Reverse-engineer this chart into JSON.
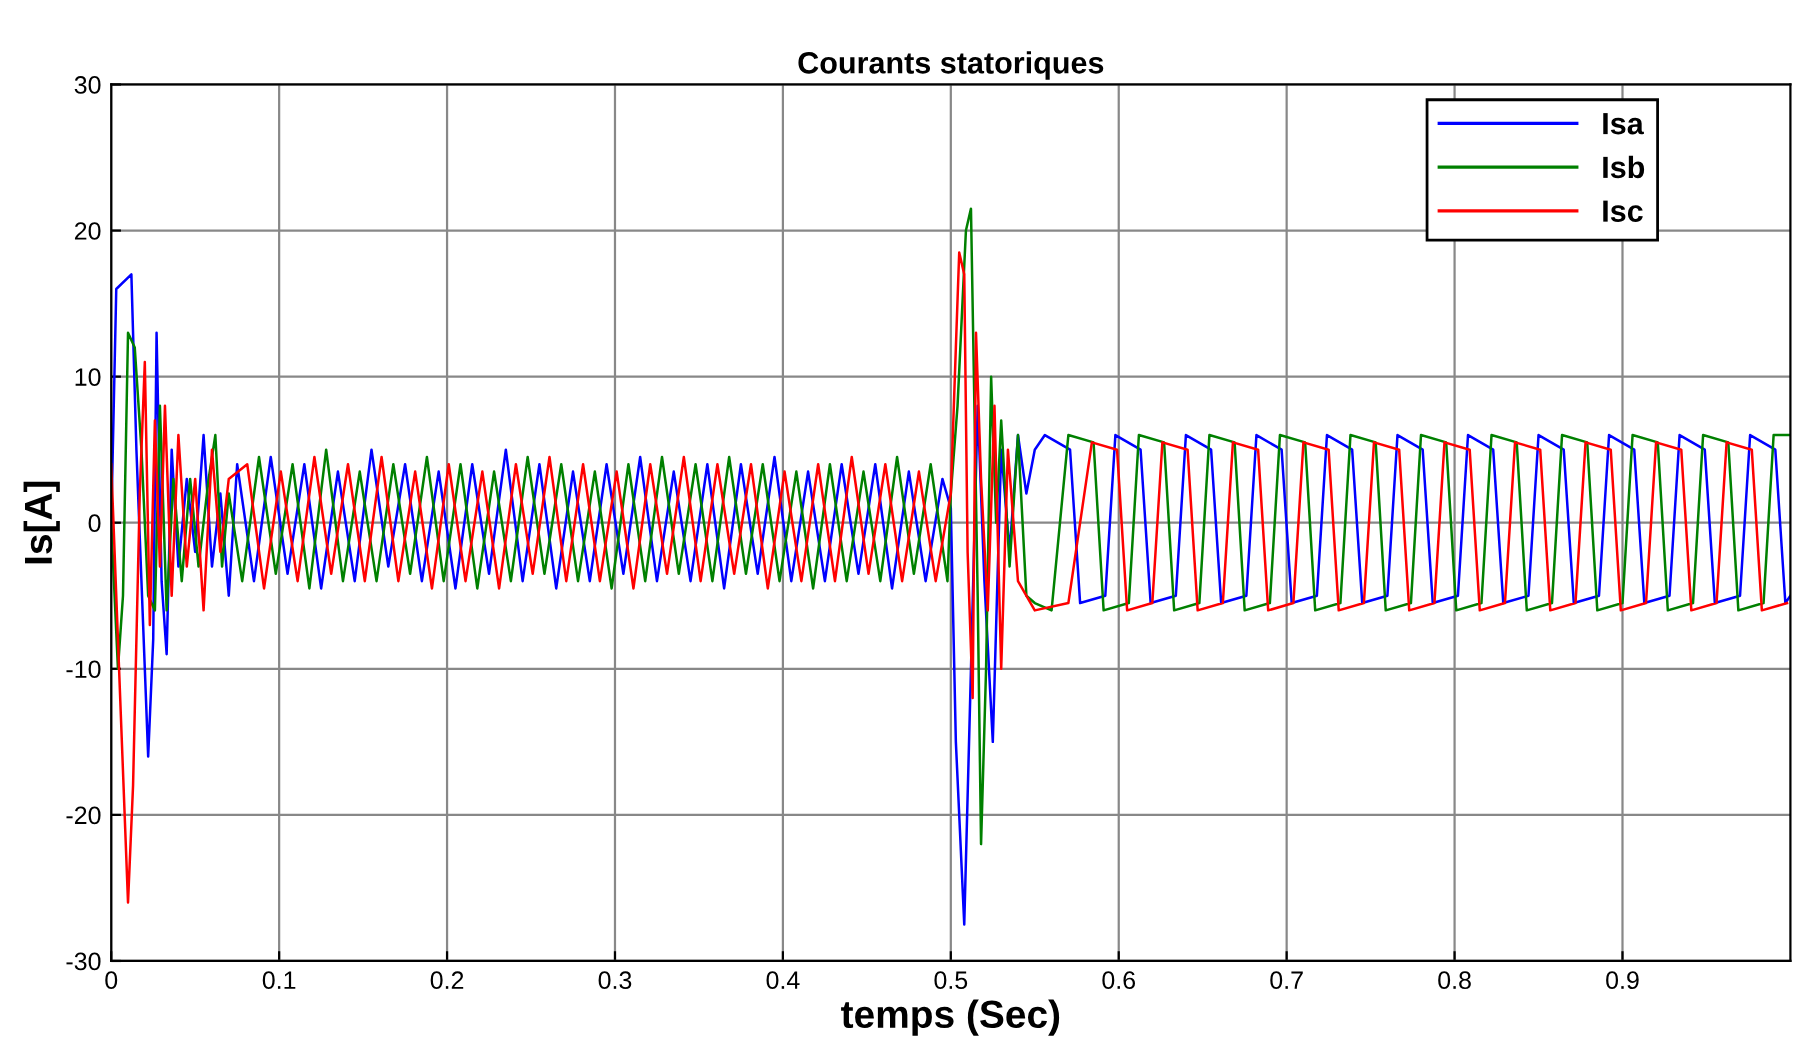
{
  "chart_data": {
    "type": "line",
    "title": "Courants statoriques",
    "xlabel": "temps (Sec)",
    "ylabel": "Is[A]",
    "xlim": [
      0,
      1
    ],
    "ylim": [
      -30,
      30
    ],
    "xticks": [
      0,
      0.1,
      0.2,
      0.3,
      0.4,
      0.5,
      0.6,
      0.7,
      0.8,
      0.9
    ],
    "yticks": [
      -30,
      -20,
      -10,
      0,
      10,
      20,
      30
    ],
    "grid": true,
    "legend": "top right",
    "line_style": "solid",
    "marker": "none",
    "series": [
      {
        "name": "Isa",
        "color": "#0000ff",
        "x": [
          0,
          0.003,
          0.012,
          0.015,
          0.02,
          0.022,
          0.025,
          0.027,
          0.03,
          0.033,
          0.036,
          0.04,
          0.045,
          0.05,
          0.055,
          0.06,
          0.065,
          0.07,
          0.075,
          0.085,
          0.095,
          0.105,
          0.115,
          0.125,
          0.135,
          0.145,
          0.155,
          0.165,
          0.175,
          0.185,
          0.195,
          0.205,
          0.215,
          0.225,
          0.235,
          0.245,
          0.255,
          0.265,
          0.275,
          0.285,
          0.295,
          0.305,
          0.315,
          0.325,
          0.335,
          0.345,
          0.355,
          0.365,
          0.375,
          0.385,
          0.395,
          0.405,
          0.415,
          0.425,
          0.435,
          0.445,
          0.455,
          0.465,
          0.475,
          0.485,
          0.495,
          0.5,
          0.503,
          0.508,
          0.512,
          0.516,
          0.52,
          0.525,
          0.53,
          0.535,
          0.54,
          0.545,
          0.55,
          0.556,
          0.571,
          0.577,
          0.592,
          0.598,
          0.613,
          0.619,
          0.634,
          0.64,
          0.655,
          0.661,
          0.676,
          0.682,
          0.697,
          0.703,
          0.718,
          0.724,
          0.739,
          0.745,
          0.76,
          0.766,
          0.781,
          0.787,
          0.802,
          0.808,
          0.823,
          0.829,
          0.844,
          0.85,
          0.865,
          0.871,
          0.886,
          0.892,
          0.907,
          0.913,
          0.928,
          0.934,
          0.949,
          0.955,
          0.97,
          0.976,
          0.991,
          0.997,
          1.0
        ],
        "values": [
          0,
          16,
          17,
          5,
          -10,
          -16,
          -8,
          13,
          -4,
          -9,
          5,
          -3,
          3,
          -2,
          6,
          -3,
          2,
          -5,
          4,
          -4,
          4.5,
          -3.5,
          4,
          -4.5,
          3.5,
          -4,
          5,
          -3,
          4,
          -4,
          3.5,
          -4.5,
          4,
          -3.5,
          5,
          -4,
          4,
          -4.5,
          3.5,
          -4,
          4,
          -3.5,
          4.5,
          -4,
          3.5,
          -4,
          4,
          -4.5,
          4,
          -3.5,
          4.5,
          -4,
          3.5,
          -4,
          4,
          -3.5,
          4,
          -4.5,
          3.5,
          -4,
          3,
          1,
          -15,
          -27.5,
          -10,
          8,
          -4,
          -15,
          5,
          -2,
          6,
          2,
          5,
          6,
          5,
          -5.5,
          -5,
          6,
          5,
          -5.5,
          -5,
          6,
          5,
          -5.5,
          -5,
          6,
          5,
          -5.5,
          -5,
          6,
          5,
          -5.5,
          -5,
          6,
          5,
          -5.5,
          -5,
          6,
          5,
          -5.5,
          -5,
          6,
          5,
          -5.5,
          -5,
          6,
          5,
          -5.5,
          -5,
          6,
          5,
          -5.5,
          -5,
          6,
          5,
          -5.5,
          -5
        ]
      },
      {
        "name": "Isb",
        "color": "#008000",
        "x": [
          0,
          0.004,
          0.007,
          0.01,
          0.014,
          0.018,
          0.022,
          0.026,
          0.029,
          0.033,
          0.037,
          0.042,
          0.047,
          0.052,
          0.058,
          0.062,
          0.066,
          0.07,
          0.078,
          0.088,
          0.098,
          0.108,
          0.118,
          0.128,
          0.138,
          0.148,
          0.158,
          0.168,
          0.178,
          0.188,
          0.198,
          0.208,
          0.218,
          0.228,
          0.238,
          0.248,
          0.258,
          0.268,
          0.278,
          0.288,
          0.298,
          0.308,
          0.318,
          0.328,
          0.338,
          0.348,
          0.358,
          0.368,
          0.378,
          0.388,
          0.398,
          0.408,
          0.418,
          0.428,
          0.438,
          0.448,
          0.458,
          0.468,
          0.478,
          0.488,
          0.498,
          0.5,
          0.504,
          0.509,
          0.512,
          0.516,
          0.518,
          0.521,
          0.524,
          0.527,
          0.53,
          0.535,
          0.54,
          0.545,
          0.55,
          0.56,
          0.57,
          0.585,
          0.591,
          0.606,
          0.612,
          0.627,
          0.633,
          0.648,
          0.654,
          0.669,
          0.675,
          0.69,
          0.696,
          0.711,
          0.717,
          0.732,
          0.738,
          0.753,
          0.759,
          0.774,
          0.78,
          0.795,
          0.801,
          0.816,
          0.822,
          0.837,
          0.843,
          0.858,
          0.864,
          0.879,
          0.885,
          0.9,
          0.906,
          0.921,
          0.927,
          0.942,
          0.948,
          0.963,
          0.969,
          0.984,
          0.99,
          1.0
        ],
        "values": [
          0,
          -10,
          -5,
          13,
          12,
          5,
          -5,
          -6,
          8,
          -6,
          3,
          -4,
          3,
          -3,
          3,
          6,
          -3,
          2,
          -4,
          4.5,
          -3.5,
          4,
          -4.5,
          5,
          -4,
          3.5,
          -4,
          4,
          -3.5,
          4.5,
          -4,
          4,
          -4.5,
          3.5,
          -4,
          4.5,
          -3.5,
          4,
          -4,
          3.5,
          -4.5,
          4,
          -4,
          4.5,
          -3.5,
          4,
          -4,
          4.5,
          -3.5,
          4,
          -4,
          3.5,
          -4.5,
          4,
          -4,
          3.5,
          -4,
          4.5,
          -3.5,
          4,
          -4,
          2,
          8,
          20,
          21.5,
          -5,
          -22,
          -10,
          10,
          0,
          7,
          -3,
          6,
          -5,
          -5.5,
          -6,
          6,
          5.5,
          -6,
          -5.5,
          6,
          5.5,
          -6,
          -5.5,
          6,
          5.5,
          -6,
          -5.5,
          6,
          5.5,
          -6,
          -5.5,
          6,
          5.5,
          -6,
          -5.5,
          6,
          5.5,
          -6,
          -5.5,
          6,
          5.5,
          -6,
          -5.5,
          6,
          5.5,
          -6,
          -5.5,
          6,
          5.5,
          -6,
          -5.5,
          6,
          5.5,
          -6,
          -5.5,
          6,
          6
        ]
      },
      {
        "name": "Isc",
        "color": "#ff0000",
        "x": [
          0,
          0.004,
          0.01,
          0.013,
          0.017,
          0.02,
          0.023,
          0.026,
          0.029,
          0.032,
          0.036,
          0.04,
          0.045,
          0.05,
          0.055,
          0.06,
          0.065,
          0.07,
          0.081,
          0.091,
          0.101,
          0.111,
          0.121,
          0.131,
          0.141,
          0.151,
          0.161,
          0.171,
          0.181,
          0.191,
          0.201,
          0.211,
          0.221,
          0.231,
          0.241,
          0.251,
          0.261,
          0.271,
          0.281,
          0.291,
          0.301,
          0.311,
          0.321,
          0.331,
          0.341,
          0.351,
          0.361,
          0.371,
          0.381,
          0.391,
          0.401,
          0.411,
          0.421,
          0.431,
          0.441,
          0.451,
          0.461,
          0.471,
          0.481,
          0.491,
          0.5,
          0.503,
          0.505,
          0.508,
          0.51,
          0.513,
          0.515,
          0.518,
          0.522,
          0.526,
          0.53,
          0.534,
          0.54,
          0.55,
          0.57,
          0.584,
          0.599,
          0.605,
          0.62,
          0.626,
          0.641,
          0.647,
          0.662,
          0.668,
          0.683,
          0.689,
          0.704,
          0.71,
          0.725,
          0.731,
          0.746,
          0.752,
          0.767,
          0.773,
          0.788,
          0.794,
          0.809,
          0.815,
          0.83,
          0.836,
          0.851,
          0.857,
          0.872,
          0.878,
          0.893,
          0.899,
          0.914,
          0.92,
          0.935,
          0.941,
          0.956,
          0.962,
          0.977,
          0.983,
          0.998
        ],
        "values": [
          4,
          -8,
          -26,
          -18,
          2,
          11,
          -7,
          7,
          -3,
          8,
          -5,
          6,
          -3,
          3,
          -6,
          5,
          -2,
          3,
          4,
          -4.5,
          3.5,
          -4,
          4.5,
          -3.5,
          4,
          -4,
          4.5,
          -4,
          3.5,
          -4.5,
          4,
          -4,
          3.5,
          -4.5,
          4,
          -3.5,
          4.5,
          -4,
          4,
          -4,
          3.5,
          -4.5,
          4,
          -3.5,
          4.5,
          -4,
          4,
          -3.5,
          4,
          -4.5,
          3.5,
          -4,
          4,
          -4,
          4.5,
          -3.5,
          4,
          -4,
          3.5,
          -4,
          2,
          12,
          18.5,
          17,
          -2,
          -12,
          13,
          3,
          -6,
          8,
          -10,
          5,
          -4,
          -6,
          -5.5,
          5.5,
          5,
          -6,
          -5.5,
          5.5,
          5,
          -6,
          -5.5,
          5.5,
          5,
          -6,
          -5.5,
          5.5,
          5,
          -6,
          -5.5,
          5.5,
          5,
          -6,
          -5.5,
          5.5,
          5,
          -6,
          -5.5,
          5.5,
          5,
          -6,
          -5.5,
          5.5,
          5,
          -6,
          -5.5,
          5.5,
          5,
          -6,
          -5.5,
          5.5,
          5,
          -6,
          -5.5
        ]
      }
    ]
  }
}
